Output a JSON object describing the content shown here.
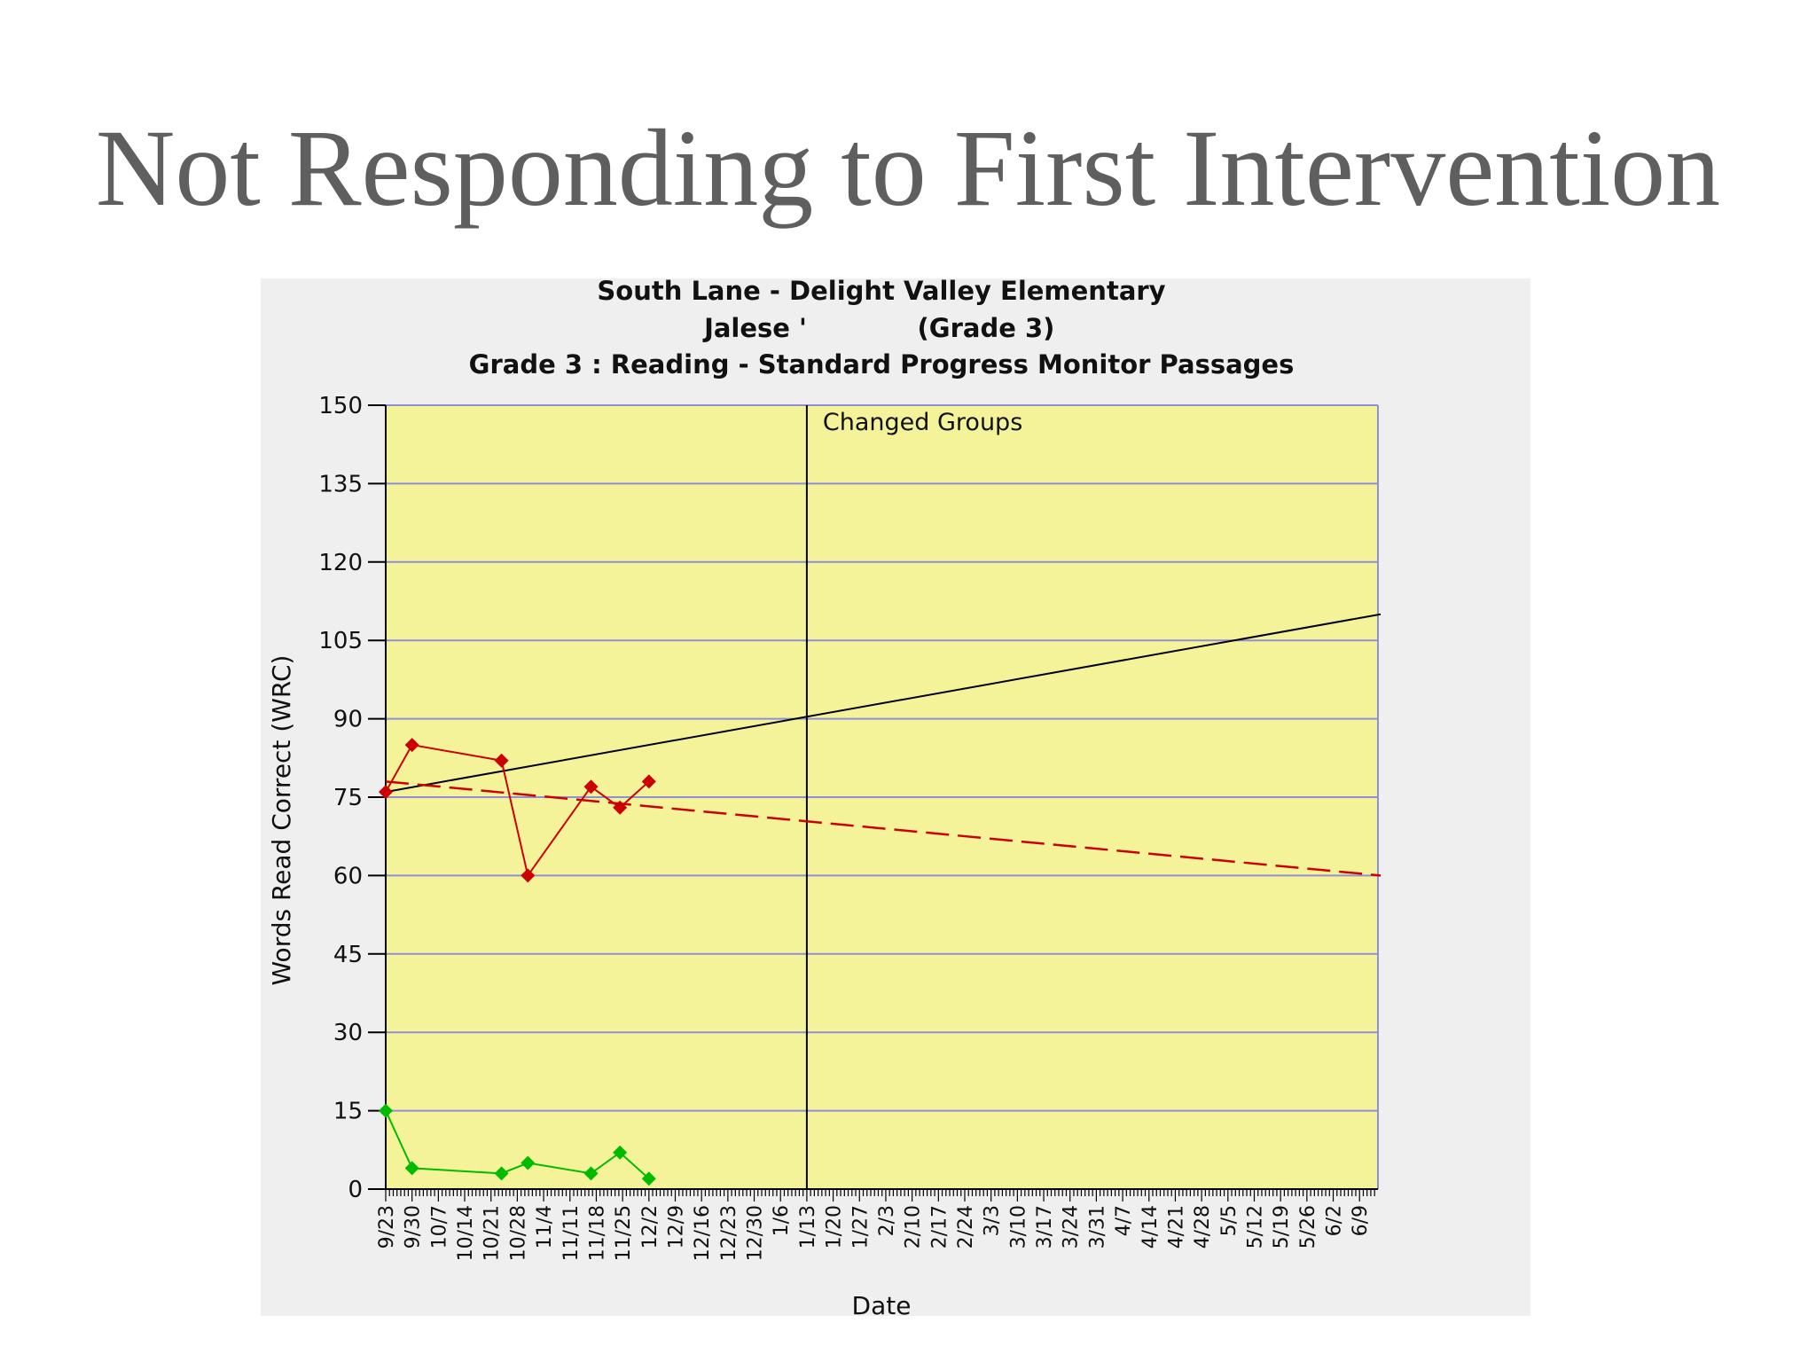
{
  "slide": {
    "title": "Not Responding to First Intervention"
  },
  "chart_data": {
    "type": "line",
    "title_lines": [
      "South Lane - Delight Valley Elementary",
      "Jalese '",
      "(Grade 3)",
      "Grade 3 : Reading - Standard Progress Monitor Passages"
    ],
    "xlabel": "Date",
    "ylabel": "Words Read Correct (WRC)",
    "ylim": [
      0,
      150
    ],
    "yticks": [
      0,
      15,
      30,
      45,
      60,
      75,
      90,
      105,
      120,
      135,
      150
    ],
    "x_categories": [
      "9/23",
      "9/30",
      "10/7",
      "10/14",
      "10/21",
      "10/28",
      "11/4",
      "11/11",
      "11/18",
      "11/25",
      "12/2",
      "12/9",
      "12/16",
      "12/23",
      "12/30",
      "1/6",
      "1/13",
      "1/20",
      "1/27",
      "2/3",
      "2/10",
      "2/17",
      "2/24",
      "3/3",
      "3/10",
      "3/17",
      "3/24",
      "3/31",
      "4/7",
      "4/14",
      "4/21",
      "4/28",
      "5/5",
      "5/12",
      "5/19",
      "5/26",
      "6/2",
      "6/9"
    ],
    "grid": true,
    "plot_background": "#f5f39a",
    "gridline_color": "#8f8fd8",
    "annotation": {
      "text": "Changed Groups",
      "x": "1/13"
    },
    "series": [
      {
        "color": "#cc0000",
        "marker": "diamond",
        "points": [
          {
            "x": 0,
            "y": 76
          },
          {
            "x": 1.0,
            "y": 85
          },
          {
            "x": 4.4,
            "y": 82
          },
          {
            "x": 5.4,
            "y": 60
          },
          {
            "x": 7.8,
            "y": 77
          },
          {
            "x": 8.9,
            "y": 73
          },
          {
            "x": 10.0,
            "y": 78
          }
        ]
      },
      {
        "color": "#00bb00",
        "marker": "diamond",
        "points": [
          {
            "x": 0,
            "y": 15
          },
          {
            "x": 1.0,
            "y": 4
          },
          {
            "x": 4.4,
            "y": 3
          },
          {
            "x": 5.4,
            "y": 5
          },
          {
            "x": 7.8,
            "y": 3
          },
          {
            "x": 8.9,
            "y": 7
          },
          {
            "x": 10.0,
            "y": 2
          }
        ]
      }
    ],
    "aim_line": {
      "color": "#000000",
      "from": {
        "x": 0,
        "y": 76
      },
      "to": {
        "x": 37.8,
        "y": 110
      }
    },
    "trend_line": {
      "color": "#cc0000",
      "dashed": true,
      "from": {
        "x": 0,
        "y": 78
      },
      "to": {
        "x": 37.8,
        "y": 60
      }
    }
  }
}
